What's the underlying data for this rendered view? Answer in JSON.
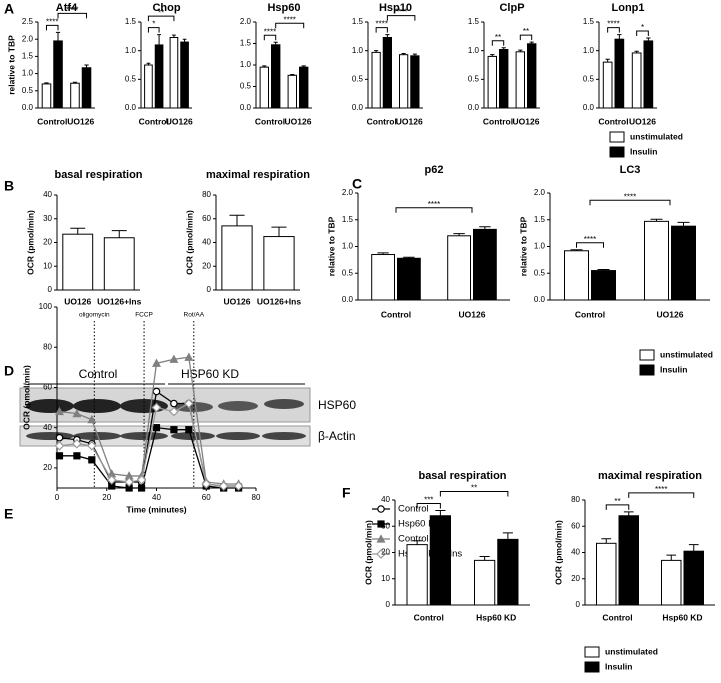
{
  "panels": [
    "A",
    "B",
    "C",
    "D",
    "E",
    "F"
  ],
  "blot": {
    "groups": [
      "Control",
      "HSP60 KD"
    ],
    "rows": [
      "HSP60",
      "β-Actin"
    ]
  },
  "chart_data": [
    {
      "type": "bar",
      "title": "Atf4",
      "ylabel": "relative to TBP",
      "categories": [
        "Control",
        "UO126"
      ],
      "series": [
        {
          "color": "#ffffff",
          "values": [
            0.7,
            0.72
          ],
          "errors": [
            0.03,
            0.03
          ]
        },
        {
          "color": "#000000",
          "values": [
            1.95,
            1.17
          ],
          "errors": [
            0.25,
            0.08
          ]
        }
      ],
      "ylim": [
        0,
        2.5
      ],
      "yticks": [
        {
          "value": 0,
          "label": "0.0"
        },
        0.5,
        {
          "value": 1,
          "label": "1.0"
        },
        1.5,
        {
          "value": 2,
          "label": "2.0"
        },
        2.5
      ],
      "annotations": [
        "****",
        "****"
      ]
    },
    {
      "type": "bar",
      "title": "Chop",
      "categories": [
        "Control",
        "UO126"
      ],
      "series": [
        {
          "color": "#ffffff",
          "values": [
            0.75,
            1.23
          ],
          "errors": [
            0.03,
            0.04
          ]
        },
        {
          "color": "#000000",
          "values": [
            1.1,
            1.15
          ],
          "errors": [
            0.18,
            0.05
          ]
        }
      ],
      "ylim": [
        0,
        1.5
      ],
      "yticks": [
        {
          "value": 0,
          "label": "0.0"
        },
        0.5,
        {
          "value": 1,
          "label": "1.0"
        },
        1.5
      ],
      "annotations": [
        "*",
        "**"
      ]
    },
    {
      "type": "bar",
      "title": "Hsp60",
      "categories": [
        "Control",
        "UO126"
      ],
      "series": [
        {
          "color": "#ffffff",
          "values": [
            0.95,
            0.76
          ],
          "errors": [
            0.03,
            0.02
          ]
        },
        {
          "color": "#000000",
          "values": [
            1.47,
            0.95
          ],
          "errors": [
            0.06,
            0.03
          ]
        }
      ],
      "ylim": [
        0,
        2
      ],
      "yticks": [
        {
          "value": 0,
          "label": "0.0"
        },
        0.5,
        {
          "value": 1,
          "label": "1.0"
        },
        1.5,
        {
          "value": 2,
          "label": "2.0"
        }
      ],
      "annotations": [
        "****",
        "****"
      ]
    },
    {
      "type": "bar",
      "title": "Hsp10",
      "categories": [
        "Control",
        "UO126"
      ],
      "series": [
        {
          "color": "#ffffff",
          "values": [
            0.97,
            0.93
          ],
          "errors": [
            0.03,
            0.02
          ]
        },
        {
          "color": "#000000",
          "values": [
            1.23,
            0.91
          ],
          "errors": [
            0.05,
            0.03
          ]
        }
      ],
      "ylim": [
        0,
        1.5
      ],
      "yticks": [
        {
          "value": 0,
          "label": "0.0"
        },
        0.5,
        {
          "value": 1,
          "label": "1.0"
        },
        1.5
      ],
      "annotations": [
        "****",
        "****"
      ]
    },
    {
      "type": "bar",
      "title": "ClpP",
      "categories": [
        "Control",
        "UO126"
      ],
      "series": [
        {
          "color": "#ffffff",
          "values": [
            0.9,
            0.98
          ],
          "errors": [
            0.03,
            0.03
          ]
        },
        {
          "color": "#000000",
          "values": [
            1.02,
            1.12
          ],
          "errors": [
            0.03,
            0.03
          ]
        }
      ],
      "ylim": [
        0,
        1.5
      ],
      "yticks": [
        {
          "value": 0,
          "label": "0.0"
        },
        0.5,
        {
          "value": 1,
          "label": "1.0"
        },
        1.5
      ],
      "annotations": [
        "**",
        "**"
      ]
    },
    {
      "type": "bar",
      "title": "Lonp1",
      "categories": [
        "Control",
        "UO126"
      ],
      "series": [
        {
          "name": "unstimulated",
          "color": "#ffffff",
          "values": [
            0.8,
            0.96
          ],
          "errors": [
            0.05,
            0.03
          ]
        },
        {
          "name": "Insulin",
          "color": "#000000",
          "values": [
            1.2,
            1.17
          ],
          "errors": [
            0.08,
            0.05
          ]
        }
      ],
      "ylim": [
        0,
        1.5
      ],
      "yticks": [
        {
          "value": 0,
          "label": "0.0"
        },
        0.5,
        {
          "value": 1,
          "label": "1.0"
        },
        1.5
      ],
      "annotations": [
        "****",
        "*"
      ],
      "legend": "bottom-right"
    },
    {
      "type": "bar",
      "title": "basal respiration",
      "ylabel": "OCR (pmol/min)",
      "categories": [
        "UO126",
        "UO126+Ins"
      ],
      "series": [
        {
          "color": "#ffffff",
          "values": [
            23.5,
            22
          ],
          "errors": [
            2.5,
            3
          ]
        }
      ],
      "ylim": [
        0,
        40
      ],
      "yticks": [
        0,
        10,
        20,
        30,
        40
      ]
    },
    {
      "type": "bar",
      "title": "maximal respiration",
      "ylabel": "OCR (pmol/min)",
      "categories": [
        "UO126",
        "UO126+Ins"
      ],
      "series": [
        {
          "color": "#ffffff",
          "values": [
            54,
            45
          ],
          "errors": [
            9,
            8
          ]
        }
      ],
      "ylim": [
        0,
        80
      ],
      "yticks": [
        0,
        20,
        40,
        60,
        80
      ]
    },
    {
      "type": "bar",
      "title": "p62",
      "ylabel": "relative to TBP",
      "categories": [
        "Control",
        "UO126"
      ],
      "series": [
        {
          "color": "#ffffff",
          "values": [
            0.85,
            1.2
          ],
          "errors": [
            0.03,
            0.04
          ]
        },
        {
          "color": "#000000",
          "values": [
            0.78,
            1.32
          ],
          "errors": [
            0.02,
            0.05
          ]
        }
      ],
      "ylim": [
        0,
        2
      ],
      "yticks": [
        {
          "value": 0,
          "label": "0.0"
        },
        0.5,
        {
          "value": 1,
          "label": "1.0"
        },
        1.5,
        {
          "value": 2,
          "label": "2.0"
        }
      ],
      "annotations": [
        "****"
      ]
    },
    {
      "type": "bar",
      "title": "LC3",
      "ylabel": "relative to TBP",
      "categories": [
        "Control",
        "UO126"
      ],
      "series": [
        {
          "name": "unstimulated",
          "color": "#ffffff",
          "values": [
            0.92,
            1.47
          ],
          "errors": [
            0.02,
            0.04
          ]
        },
        {
          "name": "Insulin",
          "color": "#000000",
          "values": [
            0.55,
            1.38
          ],
          "errors": [
            0.02,
            0.07
          ]
        }
      ],
      "ylim": [
        0,
        2
      ],
      "yticks": [
        {
          "value": 0,
          "label": "0.0"
        },
        0.5,
        {
          "value": 1,
          "label": "1.0"
        },
        1.5,
        {
          "value": 2,
          "label": "2.0"
        }
      ],
      "annotations": [
        "****",
        "****"
      ],
      "legend": "bottom-right"
    },
    {
      "type": "line",
      "xlabel": "Time (minutes)",
      "ylabel": "OCR (pmol/min)",
      "x": [
        1,
        8,
        14,
        22,
        29,
        34,
        40,
        47,
        53,
        60,
        67,
        73
      ],
      "series": [
        {
          "name": "Control",
          "color": "#000000",
          "marker": "circle-open",
          "values": [
            35,
            34,
            32,
            13,
            13,
            13,
            58,
            52,
            52,
            12,
            11,
            11
          ]
        },
        {
          "name": "Hsp60 KD",
          "color": "#000000",
          "marker": "square",
          "values": [
            26,
            26,
            24,
            11,
            10,
            10,
            40,
            39,
            39,
            11,
            10,
            10
          ]
        },
        {
          "name": "Control +Ins",
          "color": "#808080",
          "marker": "triangle",
          "values": [
            48,
            47,
            44,
            17,
            16,
            16,
            72,
            74,
            75,
            13,
            12,
            12
          ]
        },
        {
          "name": "Hsp60 KD +Ins",
          "color": "#9a9a9a",
          "marker": "diamond",
          "values": [
            31,
            32,
            31,
            14,
            13,
            14,
            50,
            48,
            52,
            12,
            11,
            11
          ]
        }
      ],
      "events": [
        {
          "x": 15,
          "label": "oligomycin"
        },
        {
          "x": 35,
          "label": "FCCP"
        },
        {
          "x": 55,
          "label": "Rot/AA"
        }
      ],
      "xlim": [
        0,
        80
      ],
      "xticks": [
        0,
        20,
        40,
        60,
        80
      ],
      "ylim": [
        10,
        100
      ],
      "yticks": [
        20,
        40,
        60,
        80,
        100
      ],
      "legend": "right"
    },
    {
      "type": "bar",
      "title": "basal respiration",
      "ylabel": "OCR (pmol/min)",
      "categories": [
        "Control",
        "Hsp60 KD"
      ],
      "series": [
        {
          "color": "#ffffff",
          "values": [
            23,
            17
          ],
          "errors": [
            1.5,
            1.5
          ]
        },
        {
          "color": "#000000",
          "values": [
            34,
            25
          ],
          "errors": [
            2,
            2.5
          ]
        }
      ],
      "ylim": [
        0,
        40
      ],
      "yticks": [
        0,
        10,
        20,
        30,
        40
      ],
      "annotations": [
        "***",
        "**"
      ]
    },
    {
      "type": "bar",
      "title": "maximal respiration",
      "ylabel": "OCR (pmol/min)",
      "categories": [
        "Control",
        "Hsp60 KD"
      ],
      "series": [
        {
          "name": "unstimulated",
          "color": "#ffffff",
          "values": [
            47,
            34
          ],
          "errors": [
            3.5,
            4
          ]
        },
        {
          "name": "Insulin",
          "color": "#000000",
          "values": [
            68,
            41
          ],
          "errors": [
            3,
            5
          ]
        }
      ],
      "ylim": [
        0,
        80
      ],
      "yticks": [
        0,
        20,
        40,
        60,
        80
      ],
      "annotations": [
        "**",
        "****"
      ],
      "legend": "bottom-right"
    }
  ]
}
